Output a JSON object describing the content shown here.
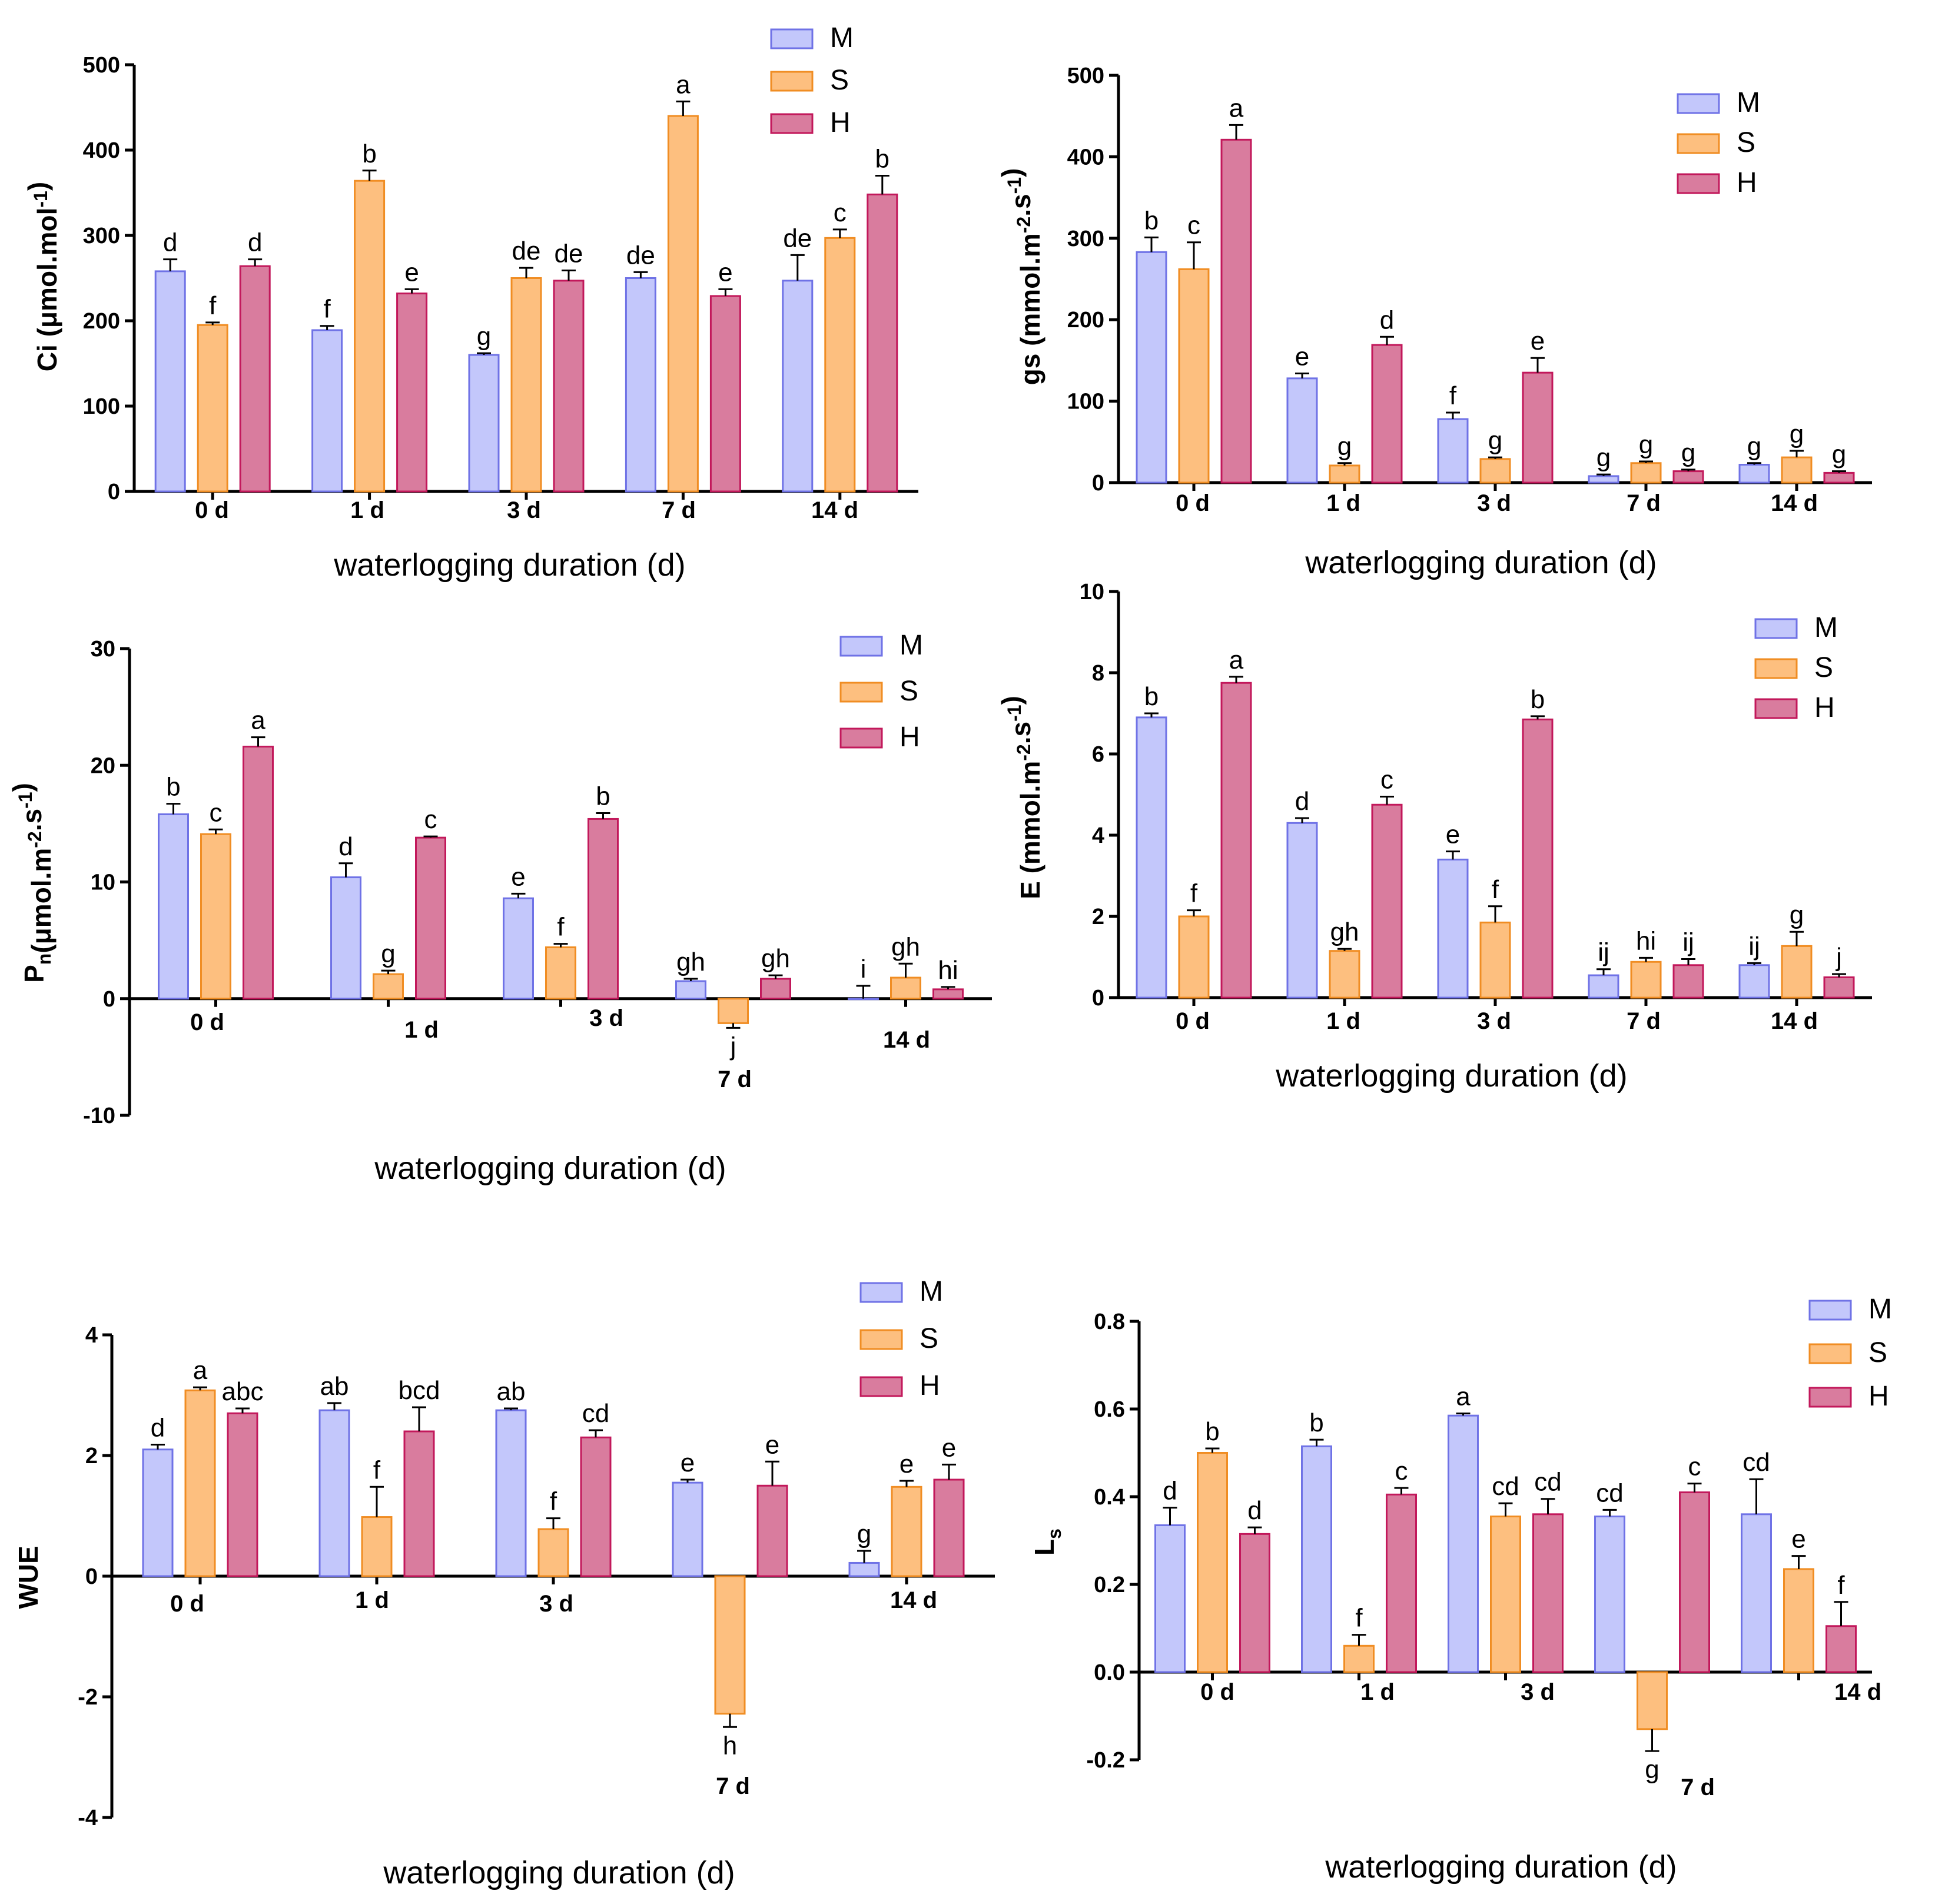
{
  "colors": {
    "M": "#c3c7fb",
    "M_stroke": "#6f72e6",
    "S": "#fdbf7f",
    "S_stroke": "#f08d23",
    "H": "#d97c9e",
    "H_stroke": "#c2185b"
  },
  "chart_data": [
    {
      "type": "bar",
      "name": "ci",
      "ylabel_main": "Ci (μmol.mol",
      "ylabel_sup": "-1",
      "ylabel_end": ")",
      "xlabel": "waterlogging duration (d)",
      "ylim": [
        0,
        500
      ],
      "yticks": [
        "0",
        "100",
        "200",
        "300",
        "400",
        "500"
      ],
      "categories": [
        "0 d",
        "1 d",
        "3 d",
        "7 d",
        "14 d"
      ],
      "legend": [
        "M",
        "S",
        "H"
      ],
      "series": [
        {
          "name": "M",
          "values": [
            258,
            189,
            160,
            250,
            247
          ],
          "errors": [
            14,
            5,
            2,
            7,
            30
          ],
          "letters": [
            "d",
            "f",
            "g",
            "de",
            "de"
          ]
        },
        {
          "name": "S",
          "values": [
            195,
            364,
            250,
            440,
            297
          ],
          "errors": [
            3,
            12,
            12,
            17,
            10
          ],
          "letters": [
            "f",
            "b",
            "de",
            "a",
            "c"
          ]
        },
        {
          "name": "H",
          "values": [
            264,
            232,
            247,
            229,
            348
          ],
          "errors": [
            8,
            5,
            12,
            8,
            22
          ],
          "letters": [
            "d",
            "e",
            "de",
            "e",
            "b"
          ]
        }
      ]
    },
    {
      "type": "bar",
      "name": "gs",
      "ylabel_main": "gs (mmol.m",
      "ylabel_sup": "-2",
      "ylabel_mid": ".s",
      "ylabel_sup2": "-1",
      "ylabel_end": ")",
      "xlabel": "waterlogging duration (d)",
      "ylim": [
        0,
        500
      ],
      "yticks": [
        "0",
        "100",
        "200",
        "300",
        "400",
        "500"
      ],
      "categories": [
        "0 d",
        "1 d",
        "3 d",
        "7 d",
        "14 d"
      ],
      "legend": [
        "M",
        "S",
        "H"
      ],
      "series": [
        {
          "name": "M",
          "values": [
            283,
            128,
            78,
            8,
            22
          ],
          "errors": [
            18,
            6,
            8,
            2,
            2
          ],
          "letters": [
            "b",
            "e",
            "f",
            "g",
            "g"
          ]
        },
        {
          "name": "S",
          "values": [
            262,
            21,
            29,
            24,
            31
          ],
          "errors": [
            33,
            3,
            2,
            2,
            8
          ],
          "letters": [
            "c",
            "g",
            "g",
            "g",
            "g"
          ]
        },
        {
          "name": "H",
          "values": [
            421,
            169,
            135,
            14,
            12
          ],
          "errors": [
            18,
            10,
            18,
            2,
            2
          ],
          "letters": [
            "a",
            "d",
            "e",
            "g",
            "g"
          ]
        }
      ]
    },
    {
      "type": "bar",
      "name": "pn",
      "ylabel_main": "P",
      "ylabel_sub": "n",
      "ylabel_mid": "(μmol.m",
      "ylabel_sup": "-2",
      "ylabel_mid2": ".s",
      "ylabel_sup2": "-1",
      "ylabel_end": ")",
      "xlabel": "waterlogging duration (d)",
      "ylim": [
        -10,
        30
      ],
      "yticks": [
        "-10",
        "0",
        "10",
        "20",
        "30"
      ],
      "categories": [
        "0 d",
        "1 d",
        "3 d",
        "7 d",
        "14 d"
      ],
      "legend": [
        "M",
        "S",
        "H"
      ],
      "series": [
        {
          "name": "M",
          "values": [
            15.8,
            10.4,
            8.6,
            1.5,
            0.0
          ],
          "errors": [
            0.9,
            1.2,
            0.4,
            0.2,
            1.1
          ],
          "letters": [
            "b",
            "d",
            "e",
            "gh",
            "i"
          ]
        },
        {
          "name": "S",
          "values": [
            14.1,
            2.1,
            4.4,
            -2.1,
            1.8
          ],
          "errors": [
            0.4,
            0.3,
            0.3,
            0.4,
            1.2
          ],
          "letters": [
            "c",
            "g",
            "f",
            "j",
            "gh"
          ]
        },
        {
          "name": "H",
          "values": [
            21.6,
            13.8,
            15.4,
            1.7,
            0.8
          ],
          "errors": [
            0.8,
            0.1,
            0.5,
            0.3,
            0.2
          ],
          "letters": [
            "a",
            "c",
            "b",
            "gh",
            "hi"
          ]
        }
      ]
    },
    {
      "type": "bar",
      "name": "e",
      "ylabel_main": "E (mmol.m",
      "ylabel_sup": "-2",
      "ylabel_mid": ".s",
      "ylabel_sup2": "-1",
      "ylabel_end": ")",
      "xlabel": "waterlogging duration (d)",
      "ylim": [
        0,
        10
      ],
      "yticks": [
        "0",
        "2",
        "4",
        "6",
        "8",
        "10"
      ],
      "categories": [
        "0 d",
        "1 d",
        "3 d",
        "7 d",
        "14 d"
      ],
      "legend": [
        "M",
        "S",
        "H"
      ],
      "series": [
        {
          "name": "M",
          "values": [
            6.9,
            4.3,
            3.4,
            0.55,
            0.8
          ],
          "errors": [
            0.1,
            0.12,
            0.2,
            0.15,
            0.05
          ],
          "letters": [
            "b",
            "d",
            "e",
            "ij",
            "ij"
          ]
        },
        {
          "name": "S",
          "values": [
            2.0,
            1.15,
            1.85,
            0.88,
            1.27
          ],
          "errors": [
            0.15,
            0.05,
            0.4,
            0.1,
            0.35
          ],
          "letters": [
            "f",
            "gh",
            "f",
            "hi",
            "g"
          ]
        },
        {
          "name": "H",
          "values": [
            7.75,
            4.75,
            6.85,
            0.8,
            0.5
          ],
          "errors": [
            0.15,
            0.2,
            0.08,
            0.15,
            0.08
          ],
          "letters": [
            "a",
            "c",
            "b",
            "ij",
            "j"
          ]
        }
      ]
    },
    {
      "type": "bar",
      "name": "wue",
      "ylabel_main": "WUE",
      "xlabel": "waterlogging duration (d)",
      "ylim": [
        -4,
        4
      ],
      "yticks": [
        "-4",
        "-2",
        "0",
        "2",
        "4"
      ],
      "categories": [
        "0 d",
        "1 d",
        "3 d",
        "7 d",
        "14 d"
      ],
      "legend": [
        "M",
        "S",
        "H"
      ],
      "series": [
        {
          "name": "M",
          "values": [
            2.1,
            2.75,
            2.75,
            1.55,
            0.22
          ],
          "errors": [
            0.08,
            0.12,
            0.03,
            0.05,
            0.2
          ],
          "letters": [
            "d",
            "ab",
            "ab",
            "e",
            "g"
          ]
        },
        {
          "name": "S",
          "values": [
            3.08,
            0.98,
            0.78,
            -2.28,
            1.48
          ],
          "errors": [
            0.05,
            0.5,
            0.18,
            0.22,
            0.1
          ],
          "letters": [
            "a",
            "f",
            "f",
            "h",
            "e"
          ]
        },
        {
          "name": "H",
          "values": [
            2.7,
            2.4,
            2.3,
            1.5,
            1.6
          ],
          "errors": [
            0.08,
            0.4,
            0.12,
            0.4,
            0.25
          ],
          "letters": [
            "abc",
            "bcd",
            "cd",
            "e",
            "e"
          ]
        }
      ]
    },
    {
      "type": "bar",
      "name": "ls",
      "ylabel_main": "L",
      "ylabel_sub": "s",
      "xlabel": "waterlogging duration (d)",
      "ylim": [
        -0.2,
        0.8
      ],
      "yticks": [
        "-0.2",
        "0.0",
        "0.2",
        "0.4",
        "0.6",
        "0.8"
      ],
      "categories": [
        "0 d",
        "1 d",
        "3 d",
        "7 d",
        "14 d"
      ],
      "legend": [
        "M",
        "S",
        "H"
      ],
      "series": [
        {
          "name": "M",
          "values": [
            0.335,
            0.515,
            0.585,
            0.355,
            0.36
          ],
          "errors": [
            0.04,
            0.015,
            0.005,
            0.015,
            0.08
          ],
          "letters": [
            "d",
            "b",
            "a",
            "cd",
            "cd"
          ]
        },
        {
          "name": "S",
          "values": [
            0.5,
            0.06,
            0.355,
            -0.13,
            0.235
          ],
          "errors": [
            0.01,
            0.025,
            0.03,
            0.05,
            0.03
          ],
          "letters": [
            "b",
            "f",
            "cd",
            "g",
            "e"
          ]
        },
        {
          "name": "H",
          "values": [
            0.315,
            0.405,
            0.36,
            0.41,
            0.105
          ],
          "errors": [
            0.015,
            0.015,
            0.035,
            0.02,
            0.055
          ],
          "letters": [
            "d",
            "c",
            "cd",
            "c",
            "f"
          ]
        }
      ]
    }
  ]
}
